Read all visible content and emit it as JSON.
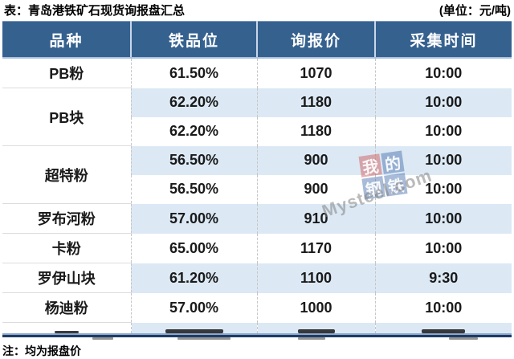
{
  "chart_data": {
    "type": "table",
    "title": "表：青岛港铁矿石现货询报盘汇总",
    "unit": "(单位：元/吨)",
    "columns": [
      "品种",
      "铁品位",
      "询报价",
      "采集时间"
    ],
    "groups": [
      {
        "variety": "PB粉",
        "rows": [
          {
            "grade": "61.50%",
            "price": "1070",
            "time": "10:00"
          }
        ]
      },
      {
        "variety": "PB块",
        "rows": [
          {
            "grade": "62.20%",
            "price": "1180",
            "time": "10:00"
          },
          {
            "grade": "62.20%",
            "price": "1180",
            "time": "10:00"
          }
        ]
      },
      {
        "variety": "超特粉",
        "rows": [
          {
            "grade": "56.50%",
            "price": "900",
            "time": "10:00"
          },
          {
            "grade": "56.50%",
            "price": "900",
            "time": "10:00"
          }
        ]
      },
      {
        "variety": "罗布河粉",
        "rows": [
          {
            "grade": "57.00%",
            "price": "910",
            "time": "10:00"
          }
        ]
      },
      {
        "variety": "卡粉",
        "rows": [
          {
            "grade": "65.00%",
            "price": "1170",
            "time": "10:00"
          }
        ]
      },
      {
        "variety": "罗伊山块",
        "rows": [
          {
            "grade": "61.20%",
            "price": "1100",
            "time": "9:30"
          }
        ]
      },
      {
        "variety": "杨迪粉",
        "rows": [
          {
            "grade": "57.00%",
            "price": "1000",
            "time": "10:00"
          }
        ]
      }
    ],
    "note": "注：均为报盘价"
  },
  "watermark": {
    "chars": [
      "我",
      "的",
      "钢",
      "铁"
    ],
    "domain": "Mysteel.com"
  },
  "colors": {
    "header_bg": "#35618F",
    "row_alt_bg": "#DCE9F5",
    "row_bg": "#FFFFFF",
    "bottom_border": "#203A64",
    "header_separator": "#C9D7E8",
    "group_divider": "#DCDCDC"
  }
}
